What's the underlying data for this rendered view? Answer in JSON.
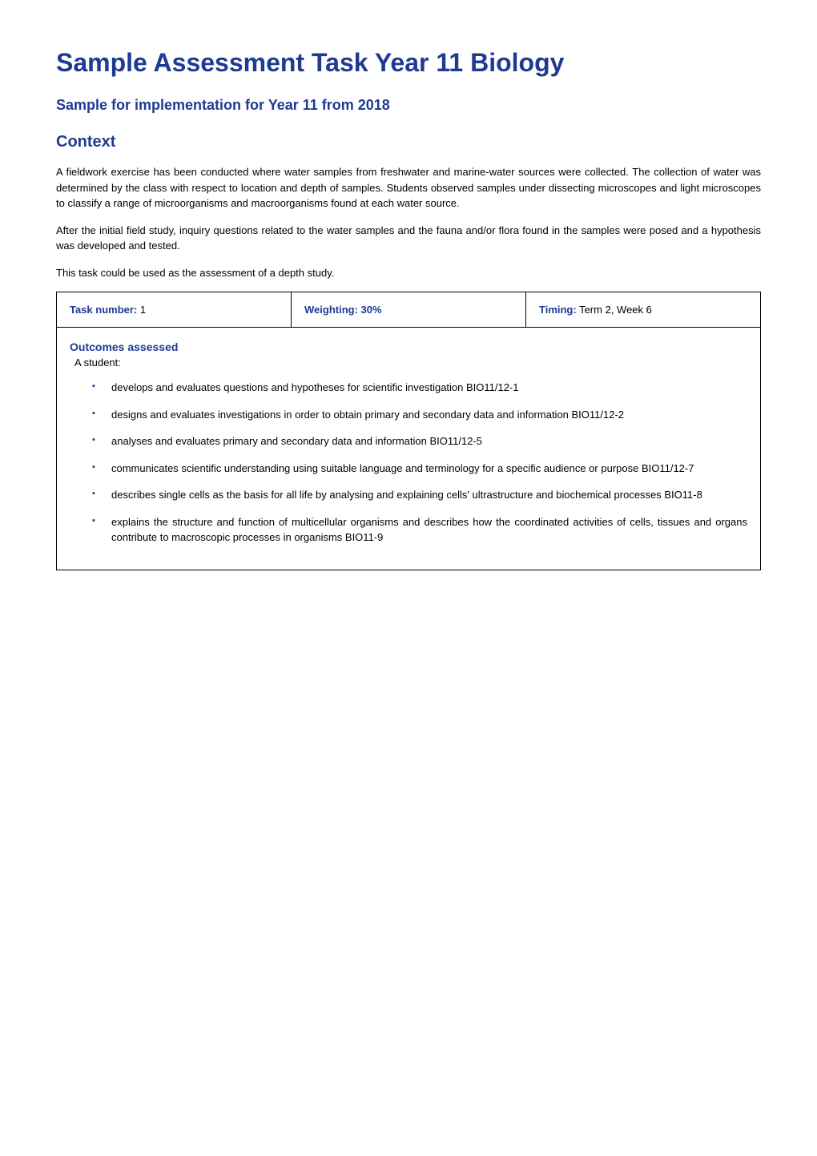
{
  "colors": {
    "title": "#1f3a93",
    "subtitle": "#1f3a93",
    "section_heading": "#1f3a93",
    "label": "#1f3a93",
    "bullet": "#1f3a93",
    "outcomes_heading": "#1f3a93",
    "body_text": "#000000",
    "background": "#ffffff",
    "border": "#000000"
  },
  "title": "Sample Assessment Task Year 11 Biology",
  "subtitle": "Sample for implementation for Year 11 from 2018",
  "context": {
    "heading": "Context",
    "paragraphs": [
      "A fieldwork exercise has been conducted where water samples from freshwater and marine-water sources were collected. The collection of water was determined by the class with respect to location and depth of samples. Students observed samples under dissecting microscopes and light microscopes to classify a range of microorganisms and macroorganisms found at each water source.",
      "After the initial field study, inquiry questions related to the water samples and the fauna and/or flora found in the samples were posed and a hypothesis was developed and tested.",
      "This task could be used as the assessment of a depth study."
    ]
  },
  "task_info": {
    "task_number_label": "Task number:",
    "task_number_value": " 1",
    "weighting_label": "Weighting:",
    "weighting_value": " 30%",
    "timing_label": "Timing:",
    "timing_value": " Term 2, Week 6"
  },
  "outcomes": {
    "heading": "Outcomes assessed",
    "intro": "A student:",
    "items": [
      "develops and evaluates questions and hypotheses for scientific investigation BIO11/12-1",
      "designs and evaluates investigations in order to obtain primary and secondary data and information BIO11/12-2",
      "analyses and evaluates primary and secondary data and information BIO11/12-5",
      "communicates scientific understanding using suitable language and terminology for a specific audience or purpose BIO11/12-7",
      "describes single cells as the basis for all life by analysing and explaining cells' ultrastructure and biochemical processes BIO11-8",
      "explains the structure and function of multicellular organisms and describes how the coordinated activities of cells, tissues and organs contribute to macroscopic processes in organisms BIO11-9"
    ]
  }
}
